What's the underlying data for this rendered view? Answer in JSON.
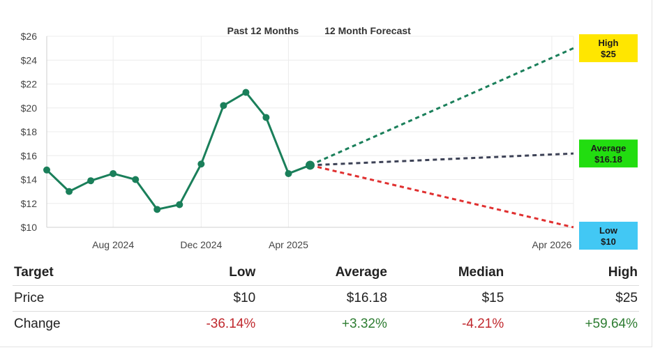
{
  "chart_data": {
    "type": "line",
    "section_labels": {
      "past": "Past 12 Months",
      "forecast": "12 Month Forecast"
    },
    "y_axis": {
      "min": 10,
      "max": 26,
      "ticks": [
        "$10",
        "$12",
        "$14",
        "$16",
        "$18",
        "$20",
        "$22",
        "$24",
        "$26"
      ]
    },
    "x_axis": {
      "tick_labels": [
        "Aug 2024",
        "Dec 2024",
        "Apr 2025",
        "Apr 2026"
      ]
    },
    "grid": true,
    "series": [
      {
        "color": "#1a7f5a",
        "x": [
          "2024-05",
          "2024-06",
          "2024-07",
          "2024-08",
          "2024-09",
          "2024-10",
          "2024-11",
          "2024-12",
          "2025-01",
          "2025-02",
          "2025-03",
          "2025-04",
          "2025-05"
        ],
        "values": [
          14.8,
          13.0,
          13.9,
          14.5,
          14.0,
          11.5,
          11.9,
          15.3,
          20.2,
          21.3,
          19.2,
          14.5,
          15.2
        ]
      }
    ],
    "forecast": {
      "from": {
        "x": "2025-05",
        "value": 15.2
      },
      "to_x": "2026-05",
      "targets": [
        {
          "label": "High",
          "value_label": "$25",
          "value": 25,
          "line_color": "#1a7f5a",
          "box_color": "#ffe600"
        },
        {
          "label": "Average",
          "value_label": "$16.18",
          "value": 16.18,
          "line_color": "#3d4256",
          "box_color": "#22dd10"
        },
        {
          "label": "Low",
          "value_label": "$10",
          "value": 10,
          "line_color": "#e03030",
          "box_color": "#42c8f4"
        }
      ]
    }
  },
  "table": {
    "headers": [
      "Target",
      "Low",
      "Average",
      "Median",
      "High"
    ],
    "rows": [
      {
        "label": "Price",
        "cells": [
          "$10",
          "$16.18",
          "$15",
          "$25"
        ]
      },
      {
        "label": "Change",
        "cells": [
          "-36.14%",
          "+3.32%",
          "-4.21%",
          "+59.64%"
        ]
      }
    ]
  }
}
